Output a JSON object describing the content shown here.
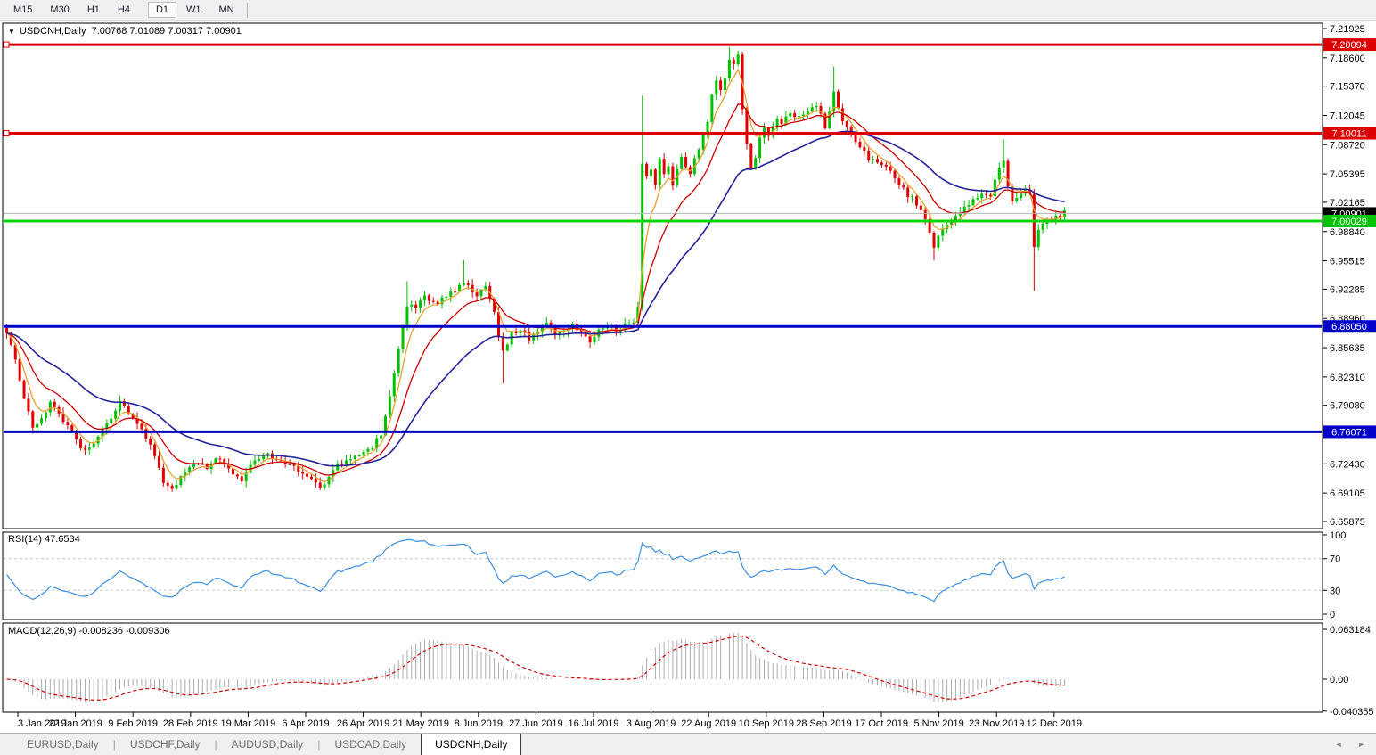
{
  "toolbar": {
    "timeframes": [
      {
        "label": "M15",
        "active": false
      },
      {
        "label": "M30",
        "active": false
      },
      {
        "label": "H1",
        "active": false
      },
      {
        "label": "H4",
        "active": false
      },
      {
        "label": "D1",
        "active": true
      },
      {
        "label": "W1",
        "active": false
      },
      {
        "label": "MN",
        "active": false
      }
    ],
    "separators_after": [
      3,
      6
    ]
  },
  "chart": {
    "title": "USDCNH,Daily  7.00768 7.01089 7.00317 7.00901",
    "dropdown_icon": "▼"
  },
  "indicators": {
    "rsi": {
      "label": "RSI(14) 47.6534"
    },
    "macd": {
      "label": "MACD(12,26,9) -0.008236 -0.009306"
    }
  },
  "tabs": [
    {
      "label": "EURUSD,Daily",
      "active": false
    },
    {
      "label": "USDCHF,Daily",
      "active": false
    },
    {
      "label": "AUDUSD,Daily",
      "active": false
    },
    {
      "label": "USDCAD,Daily",
      "active": false
    },
    {
      "label": "USDCNH,Daily",
      "active": true
    }
  ],
  "tab_arrows": {
    "left": "◄",
    "right": "►"
  },
  "colors": {
    "bull": "#00c000",
    "bear": "#e00000",
    "ma_fast": "#e8a030",
    "ma_medium": "#cc0000",
    "ma_slow": "#222299",
    "rsi_line": "#3d8fe0",
    "macd_hist": "#ababab",
    "macd_signal": "#d00000",
    "resistance": "#dc0000",
    "support_green": "#00d400",
    "support_blue": "#0000c8",
    "last_price_line": "#b4b4b4",
    "dashed_level": "#c8c8c8"
  },
  "chart_data": {
    "type": "candlestick",
    "symbol": "USDCNH",
    "timeframe": "Daily",
    "ohlc_current": {
      "open": 7.00768,
      "high": 7.01089,
      "low": 7.00317,
      "close": 7.00901
    },
    "y_axis": {
      "min": 6.65875,
      "max": 7.21925,
      "ticks": [
        "7.21925",
        "7.18600",
        "7.15370",
        "7.12045",
        "7.08720",
        "7.05395",
        "7.02165",
        "6.98840",
        "6.95515",
        "6.92285",
        "6.88960",
        "6.85635",
        "6.82310",
        "6.79080",
        "6.75755",
        "6.72430",
        "6.69105",
        "6.65875"
      ]
    },
    "x_axis": {
      "dates": [
        "3 Jan 2019",
        "22 Jan 2019",
        "9 Feb 2019",
        "28 Feb 2019",
        "19 Mar 2019",
        "6 Apr 2019",
        "26 Apr 2019",
        "21 May 2019",
        "8 Jun 2019",
        "27 Jun 2019",
        "16 Jul 2019",
        "3 Aug 2019",
        "22 Aug 2019",
        "10 Sep 2019",
        "28 Sep 2019",
        "17 Oct 2019",
        "5 Nov 2019",
        "23 Nov 2019",
        "12 Dec 2019"
      ]
    },
    "levels": [
      {
        "label": "7.20094",
        "price": 7.20094,
        "color": "#dc0000",
        "badge": "#dc0000",
        "width": 3,
        "handle": true,
        "type": "resistance"
      },
      {
        "label": "7.10011",
        "price": 7.10011,
        "color": "#dc0000",
        "badge": "#dc0000",
        "width": 3,
        "handle": true,
        "type": "resistance"
      },
      {
        "label": "7.00901",
        "price": 7.00901,
        "color": "#b4b4b4",
        "badge": "#000000",
        "width": 1,
        "handle": false,
        "type": "last-price"
      },
      {
        "label": "7.00029",
        "price": 7.00029,
        "color": "#00d400",
        "badge": "#00c400",
        "width": 3,
        "handle": false,
        "type": "support"
      },
      {
        "label": "6.88050",
        "price": 6.8805,
        "color": "#0000c8",
        "badge": "#0000c8",
        "width": 3,
        "handle": false,
        "type": "support"
      },
      {
        "label": "6.76071",
        "price": 6.76071,
        "color": "#0000c8",
        "badge": "#0000c8",
        "width": 3,
        "handle": false,
        "type": "support"
      }
    ],
    "candle_count": 244,
    "price_anchors": [
      [
        0,
        6.872
      ],
      [
        2,
        6.845
      ],
      [
        4,
        6.795
      ],
      [
        6,
        6.768
      ],
      [
        8,
        6.778
      ],
      [
        10,
        6.792
      ],
      [
        12,
        6.78
      ],
      [
        14,
        6.768
      ],
      [
        16,
        6.752
      ],
      [
        18,
        6.738
      ],
      [
        20,
        6.748
      ],
      [
        22,
        6.762
      ],
      [
        24,
        6.776
      ],
      [
        26,
        6.792
      ],
      [
        28,
        6.782
      ],
      [
        30,
        6.772
      ],
      [
        32,
        6.756
      ],
      [
        34,
        6.732
      ],
      [
        36,
        6.702
      ],
      [
        38,
        6.695
      ],
      [
        40,
        6.712
      ],
      [
        42,
        6.722
      ],
      [
        44,
        6.727
      ],
      [
        46,
        6.722
      ],
      [
        48,
        6.733
      ],
      [
        50,
        6.722
      ],
      [
        52,
        6.714
      ],
      [
        54,
        6.702
      ],
      [
        56,
        6.722
      ],
      [
        58,
        6.729
      ],
      [
        60,
        6.734
      ],
      [
        62,
        6.729
      ],
      [
        64,
        6.726
      ],
      [
        66,
        6.721
      ],
      [
        68,
        6.716
      ],
      [
        70,
        6.706
      ],
      [
        72,
        6.694
      ],
      [
        74,
        6.712
      ],
      [
        76,
        6.722
      ],
      [
        78,
        6.729
      ],
      [
        80,
        6.733
      ],
      [
        82,
        6.737
      ],
      [
        84,
        6.742
      ],
      [
        86,
        6.758
      ],
      [
        88,
        6.802
      ],
      [
        89,
        6.828
      ],
      [
        90,
        6.853
      ],
      [
        91,
        6.878
      ],
      [
        92,
        6.906
      ],
      [
        94,
        6.9
      ],
      [
        96,
        6.916
      ],
      [
        98,
        6.906
      ],
      [
        100,
        6.912
      ],
      [
        102,
        6.921
      ],
      [
        104,
        6.926
      ],
      [
        106,
        6.929
      ],
      [
        108,
        6.916
      ],
      [
        110,
        6.926
      ],
      [
        112,
        6.896
      ],
      [
        113,
        6.868
      ],
      [
        114,
        6.852
      ],
      [
        116,
        6.872
      ],
      [
        118,
        6.878
      ],
      [
        120,
        6.868
      ],
      [
        122,
        6.878
      ],
      [
        124,
        6.883
      ],
      [
        126,
        6.871
      ],
      [
        128,
        6.877
      ],
      [
        130,
        6.881
      ],
      [
        132,
        6.876
      ],
      [
        134,
        6.863
      ],
      [
        136,
        6.878
      ],
      [
        138,
        6.879
      ],
      [
        140,
        6.877
      ],
      [
        142,
        6.881
      ],
      [
        144,
        6.886
      ],
      [
        145,
        6.902
      ],
      [
        146,
        7.062
      ],
      [
        147,
        7.048
      ],
      [
        148,
        7.056
      ],
      [
        149,
        7.042
      ],
      [
        150,
        7.07
      ],
      [
        151,
        7.052
      ],
      [
        152,
        7.062
      ],
      [
        153,
        7.042
      ],
      [
        154,
        7.058
      ],
      [
        155,
        7.07
      ],
      [
        156,
        7.062
      ],
      [
        157,
        7.055
      ],
      [
        158,
        7.072
      ],
      [
        159,
        7.08
      ],
      [
        160,
        7.095
      ],
      [
        161,
        7.112
      ],
      [
        162,
        7.142
      ],
      [
        163,
        7.158
      ],
      [
        164,
        7.146
      ],
      [
        165,
        7.162
      ],
      [
        166,
        7.185
      ],
      [
        167,
        7.178
      ],
      [
        168,
        7.188
      ],
      [
        169,
        7.13
      ],
      [
        170,
        7.088
      ],
      [
        171,
        7.058
      ],
      [
        172,
        7.075
      ],
      [
        173,
        7.092
      ],
      [
        174,
        7.103
      ],
      [
        175,
        7.096
      ],
      [
        176,
        7.108
      ],
      [
        177,
        7.118
      ],
      [
        178,
        7.112
      ],
      [
        179,
        7.118
      ],
      [
        180,
        7.124
      ],
      [
        182,
        7.118
      ],
      [
        184,
        7.126
      ],
      [
        186,
        7.132
      ],
      [
        188,
        7.108
      ],
      [
        190,
        7.148
      ],
      [
        192,
        7.112
      ],
      [
        194,
        7.098
      ],
      [
        196,
        7.082
      ],
      [
        198,
        7.072
      ],
      [
        200,
        7.066
      ],
      [
        202,
        7.06
      ],
      [
        204,
        7.048
      ],
      [
        206,
        7.036
      ],
      [
        208,
        7.026
      ],
      [
        210,
        7.012
      ],
      [
        212,
        6.988
      ],
      [
        213,
        6.972
      ],
      [
        214,
        6.982
      ],
      [
        216,
        6.998
      ],
      [
        218,
        7.006
      ],
      [
        220,
        7.016
      ],
      [
        222,
        7.022
      ],
      [
        224,
        7.028
      ],
      [
        226,
        7.03
      ],
      [
        228,
        7.062
      ],
      [
        229,
        7.072
      ],
      [
        230,
        7.042
      ],
      [
        231,
        7.022
      ],
      [
        232,
        7.028
      ],
      [
        234,
        7.034
      ],
      [
        235,
        7.03
      ],
      [
        236,
        6.972
      ],
      [
        237,
        6.988
      ],
      [
        238,
        6.994
      ],
      [
        240,
        7.002
      ],
      [
        242,
        7.006
      ],
      [
        243,
        7.009
      ]
    ],
    "wick_overrides": [
      {
        "i": 92,
        "high": 6.932
      },
      {
        "i": 105,
        "high": 6.956
      },
      {
        "i": 114,
        "low": 6.816
      },
      {
        "i": 146,
        "high": 7.143
      },
      {
        "i": 166,
        "high": 7.198
      },
      {
        "i": 190,
        "high": 7.176
      },
      {
        "i": 213,
        "low": 6.956
      },
      {
        "i": 229,
        "high": 7.093
      },
      {
        "i": 236,
        "low": 6.921
      }
    ],
    "moving_averages": [
      {
        "name": "fast",
        "period": 5,
        "color": "#e8a030"
      },
      {
        "name": "medium",
        "period": 13,
        "color": "#cc0000"
      },
      {
        "name": "slow",
        "period": 34,
        "color": "#222299"
      }
    ],
    "sub_indicators": [
      {
        "name": "RSI",
        "period": 14,
        "value": 47.6534,
        "axis": [
          "100",
          "70",
          "30",
          "0"
        ],
        "axis_values": [
          100,
          70,
          30,
          0
        ],
        "dashed_levels": [
          70,
          30
        ],
        "legend_position": "top-left"
      },
      {
        "name": "MACD",
        "params": "12,26,9",
        "macd": -0.008236,
        "signal": -0.009306,
        "axis": [
          "0.063184",
          "0.00",
          "-0.040355"
        ],
        "axis_values": [
          0.063184,
          0.0,
          -0.040355
        ],
        "legend_position": "top-left"
      }
    ]
  }
}
